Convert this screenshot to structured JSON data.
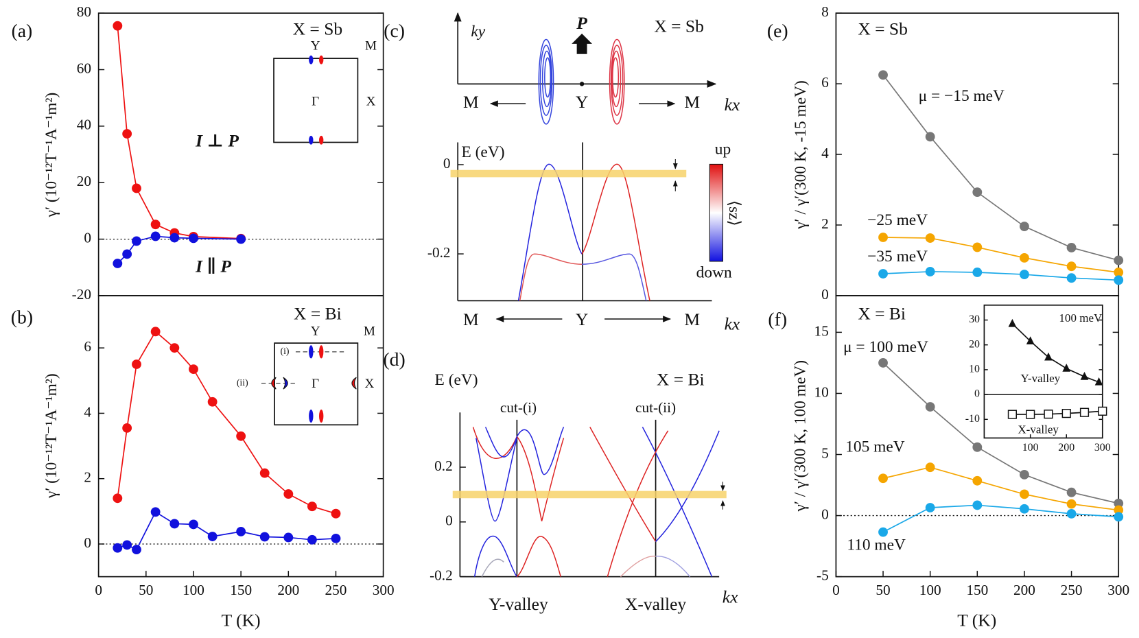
{
  "chart_data": [
    {
      "type": "line",
      "label": "(a)",
      "title": "X = Sb",
      "ylabel": "γ′ (10⁻¹²T⁻¹A⁻¹m²)",
      "xlim": [
        0,
        300
      ],
      "ylim": [
        -20,
        80
      ],
      "yticks": [
        -20,
        0,
        20,
        40,
        60,
        80
      ],
      "zero_line": "dotted",
      "annotations": [
        "Y",
        "M",
        "Γ",
        "X"
      ],
      "series": [
        {
          "name": "I ⊥ P",
          "color": "#ee1111",
          "marker": "circle",
          "x": [
            20,
            30,
            40,
            60,
            80,
            100,
            150
          ],
          "values": [
            75.5,
            37.3,
            18,
            5.2,
            2.2,
            0.9,
            0.2
          ]
        },
        {
          "name": "I ∥ P",
          "color": "#1111dd",
          "marker": "circle",
          "x": [
            20,
            30,
            40,
            60,
            80,
            100,
            150
          ],
          "values": [
            -8.6,
            -5.3,
            -0.7,
            1.0,
            0.5,
            0.3,
            0.0
          ]
        }
      ]
    },
    {
      "type": "line",
      "label": "(b)",
      "title": "X = Bi",
      "ylabel": "γ′ (10⁻¹²T⁻¹A⁻¹m²)",
      "xlabel": "T (K)",
      "xlim": [
        0,
        300
      ],
      "xticks": [
        0,
        50,
        100,
        150,
        200,
        250,
        300
      ],
      "ylim": [
        -1,
        7.6
      ],
      "yticks": [
        0,
        2,
        4,
        6
      ],
      "zero_line": "dotted",
      "annotations": [
        "Y",
        "M",
        "Γ",
        "X",
        "(i)",
        "(ii)"
      ],
      "series": [
        {
          "color": "#ee1111",
          "marker": "circle",
          "x": [
            20,
            30,
            40,
            60,
            80,
            100,
            120,
            150,
            175,
            200,
            225,
            250
          ],
          "values": [
            1.4,
            3.55,
            5.5,
            6.5,
            6.0,
            5.35,
            4.35,
            3.3,
            2.17,
            1.53,
            1.15,
            0.93
          ]
        },
        {
          "color": "#1111dd",
          "marker": "circle",
          "x": [
            20,
            30,
            40,
            60,
            80,
            100,
            120,
            150,
            175,
            200,
            225,
            250
          ],
          "values": [
            -0.12,
            -0.03,
            -0.17,
            0.98,
            0.62,
            0.6,
            0.23,
            0.38,
            0.22,
            0.2,
            0.13,
            0.17
          ]
        }
      ]
    },
    {
      "type": "band",
      "label": "(c)",
      "title": "X = Sb",
      "ylim": [
        -0.305,
        0.05
      ],
      "yticks": [
        0,
        -0.2
      ],
      "fermi_level": -0.02,
      "annotations": [
        "ky",
        "P",
        "M",
        "Y",
        "M",
        "kx",
        "E (eV)",
        "up",
        "down",
        "⟨sz⟩",
        "M",
        "Y",
        "M",
        "kx"
      ]
    },
    {
      "type": "band",
      "label": "(d)",
      "title": "X = Bi",
      "ylim": [
        -0.2,
        0.4
      ],
      "yticks": [
        -0.2,
        0,
        0.2
      ],
      "fermi_level": 0.1,
      "annotations": [
        "E (eV)",
        "cut-(i)",
        "cut-(ii)",
        "Y-valley",
        "X-valley",
        "kx"
      ]
    },
    {
      "type": "line",
      "label": "(e)",
      "title": "X = Sb",
      "ylabel": "γ′ / γ′(300 K, -15 meV)",
      "xlim": [
        0,
        300
      ],
      "ylim": [
        0,
        8
      ],
      "yticks": [
        0,
        2,
        4,
        6,
        8
      ],
      "series": [
        {
          "name": "μ = −15 meV",
          "color": "#777777",
          "marker": "circle",
          "x": [
            50,
            100,
            150,
            200,
            250,
            300
          ],
          "values": [
            6.25,
            4.5,
            2.93,
            1.96,
            1.36,
            1.0
          ]
        },
        {
          "name": "−25 meV",
          "color": "#f5a500",
          "marker": "circle",
          "x": [
            50,
            100,
            150,
            200,
            250,
            300
          ],
          "values": [
            1.65,
            1.63,
            1.37,
            1.07,
            0.83,
            0.66
          ]
        },
        {
          "name": "−35 meV",
          "color": "#1aa8e8",
          "marker": "circle",
          "x": [
            50,
            100,
            150,
            200,
            250,
            300
          ],
          "values": [
            0.62,
            0.68,
            0.66,
            0.6,
            0.5,
            0.44
          ]
        }
      ]
    },
    {
      "type": "line",
      "label": "(f)",
      "title": "X = Bi",
      "ylabel": "γ′ / γ′(300 K, 100 meV)",
      "xlabel": "T (K)",
      "xlim": [
        0,
        300
      ],
      "xticks": [
        0,
        50,
        100,
        150,
        200,
        250,
        300
      ],
      "ylim": [
        -5,
        18
      ],
      "yticks": [
        -5,
        0,
        5,
        10,
        15
      ],
      "zero_line": "dotted",
      "series": [
        {
          "name": "μ = 100 meV",
          "color": "#777777",
          "marker": "circle",
          "x": [
            50,
            100,
            150,
            200,
            250,
            300
          ],
          "values": [
            12.5,
            8.9,
            5.6,
            3.35,
            1.9,
            1.0
          ]
        },
        {
          "name": "105 meV",
          "color": "#f5a500",
          "marker": "circle",
          "x": [
            50,
            100,
            150,
            200,
            250,
            300
          ],
          "values": [
            3.05,
            3.95,
            2.85,
            1.75,
            0.95,
            0.45
          ]
        },
        {
          "name": "110 meV",
          "color": "#1aa8e8",
          "marker": "circle",
          "x": [
            50,
            100,
            150,
            200,
            250,
            300
          ],
          "values": [
            -1.35,
            0.65,
            0.85,
            0.55,
            0.15,
            -0.1
          ]
        }
      ]
    },
    {
      "type": "line",
      "xlim": [
        -28,
        300
      ],
      "xticks": [
        100,
        200,
        300
      ],
      "ylim": [
        -17.5,
        36
      ],
      "yticks": [
        -10,
        0,
        10,
        20,
        30
      ],
      "zero_line": "solid",
      "annotations": [
        "Y-valley",
        "X-valley"
      ],
      "series": [
        {
          "name": "100 meV",
          "color": "#111111",
          "marker": "triangle",
          "x": [
            50,
            100,
            150,
            200,
            250,
            290
          ],
          "values": [
            28.5,
            21.5,
            15,
            10.5,
            7.2,
            5
          ]
        },
        {
          "color": "#111111",
          "marker": "square",
          "x": [
            50,
            100,
            150,
            200,
            250,
            300
          ],
          "values": [
            -8,
            -8,
            -7.9,
            -7.6,
            -7.2,
            -6.7
          ]
        }
      ]
    }
  ]
}
